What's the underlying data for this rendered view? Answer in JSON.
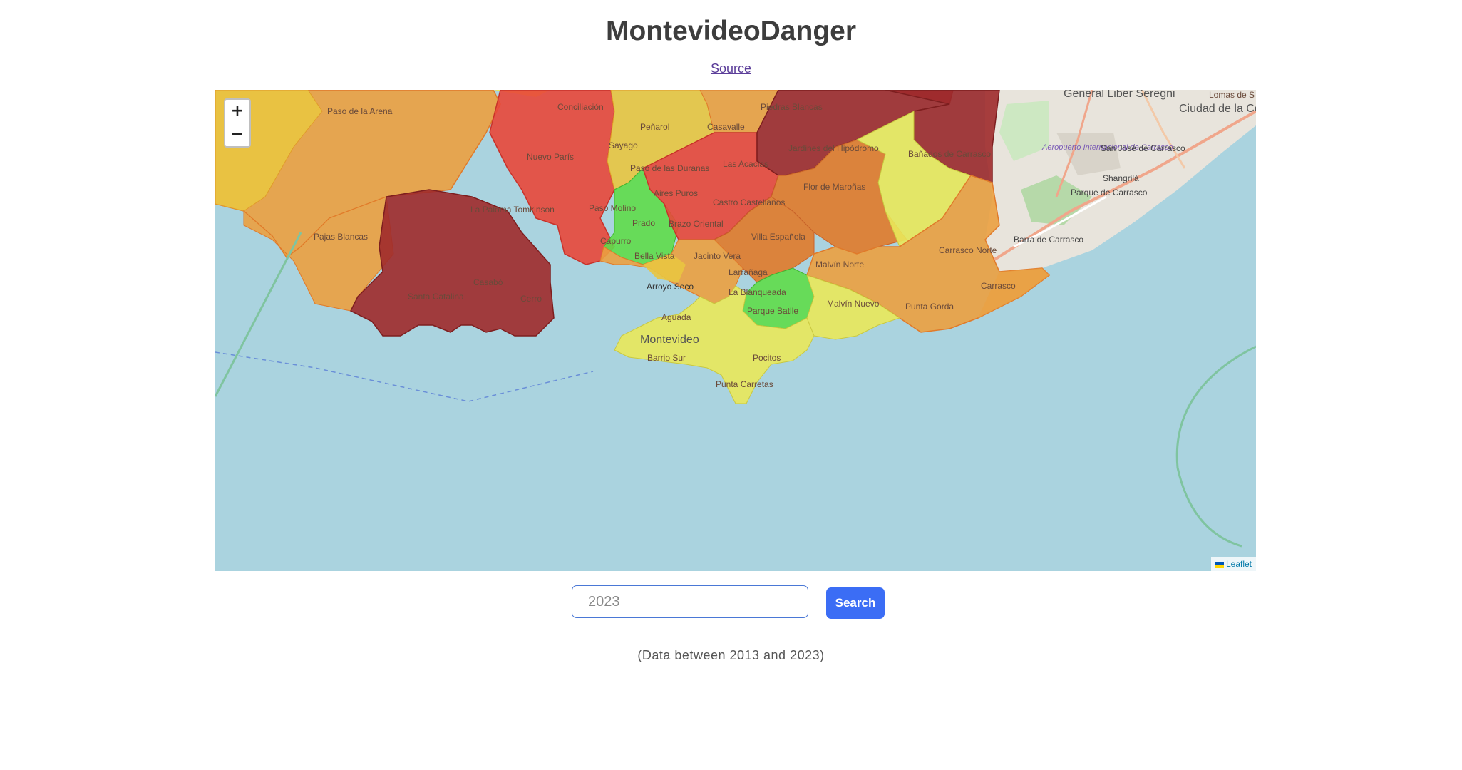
{
  "page": {
    "title": "MontevideoDanger",
    "source_link": "Source",
    "note": "(Data between 2013 and 2023)"
  },
  "search": {
    "placeholder": "2023",
    "button_label": "Search"
  },
  "map": {
    "zoom_in": "+",
    "zoom_out": "−",
    "attribution": "Leaflet",
    "colors": {
      "water": "#aad3df",
      "very_high": "#9e2a2b",
      "high": "#e8473a",
      "medium_high": "#e07a2a",
      "medium": "#eba040",
      "low": "#e9e85a",
      "very_low": "#5fdc4a"
    },
    "neighborhood_labels": [
      "Paso de la Arena",
      "Conciliación",
      "Piedras Blancas",
      "Peñarol",
      "Casavalle",
      "Nuevo París",
      "Sayago",
      "Paso de las Duranas",
      "Las Acacias",
      "Jardines del Hipódromo",
      "Bañados de Carrasco",
      "General Liber Seregni",
      "Ciudad de la Costa",
      "Lomas de S",
      "Aeropuerto Internacional de Carrasco",
      "San José de Carrasco",
      "Shangrilá",
      "Parque de Carrasco",
      "Barra de Carrasco",
      "Flor de Maroñas",
      "Aires Puros",
      "Castro Castellanos",
      "La Paloma Tomkinson",
      "Paso Molino",
      "Prado",
      "Brazo Oriental",
      "Villa Española",
      "Pajas Blancas",
      "Capurro",
      "Bella Vista",
      "Jacinto Vera",
      "Malvín Norte",
      "Carrasco Norte",
      "Casabó",
      "Larrañaga",
      "Arroyo Seco",
      "La Blanqueada",
      "Carrasco",
      "Santa Catalina",
      "Cerro",
      "Parque Batlle",
      "Malvín Nuevo",
      "Punta Gorda",
      "Aguada",
      "Montevideo",
      "Barrio Sur",
      "Pocitos",
      "Punta Carretas"
    ]
  }
}
